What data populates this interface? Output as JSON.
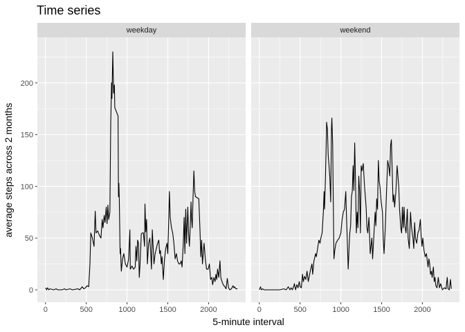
{
  "chart_data": {
    "type": "line",
    "title": "Time series",
    "xlabel": "5-minute interval",
    "ylabel": "average steps across 2 months",
    "xlim": [
      -100,
      2455
    ],
    "ylim": [
      -12,
      244
    ],
    "x_ticks": [
      0,
      500,
      1000,
      1500,
      2000
    ],
    "y_ticks": [
      0,
      50,
      100,
      150,
      200
    ],
    "grid": true,
    "facets": [
      {
        "label": "weekday",
        "points": [
          [
            0,
            2
          ],
          [
            15,
            0
          ],
          [
            25,
            2
          ],
          [
            40,
            0
          ],
          [
            55,
            1
          ],
          [
            100,
            0
          ],
          [
            130,
            1
          ],
          [
            150,
            0
          ],
          [
            200,
            0
          ],
          [
            235,
            1
          ],
          [
            250,
            0
          ],
          [
            300,
            1
          ],
          [
            330,
            0
          ],
          [
            400,
            1
          ],
          [
            420,
            0
          ],
          [
            450,
            3
          ],
          [
            470,
            1
          ],
          [
            490,
            2
          ],
          [
            510,
            4
          ],
          [
            530,
            3
          ],
          [
            545,
            25
          ],
          [
            555,
            55
          ],
          [
            575,
            50
          ],
          [
            595,
            42
          ],
          [
            610,
            76
          ],
          [
            620,
            55
          ],
          [
            640,
            57
          ],
          [
            660,
            53
          ],
          [
            680,
            50
          ],
          [
            695,
            68
          ],
          [
            705,
            60
          ],
          [
            720,
            72
          ],
          [
            730,
            65
          ],
          [
            745,
            80
          ],
          [
            755,
            64
          ],
          [
            765,
            82
          ],
          [
            775,
            68
          ],
          [
            790,
            75
          ],
          [
            800,
            160
          ],
          [
            810,
            200
          ],
          [
            815,
            185
          ],
          [
            825,
            230
          ],
          [
            835,
            190
          ],
          [
            845,
            198
          ],
          [
            850,
            176
          ],
          [
            870,
            172
          ],
          [
            890,
            168
          ],
          [
            895,
            90
          ],
          [
            900,
            103
          ],
          [
            905,
            88
          ],
          [
            915,
            35
          ],
          [
            920,
            40
          ],
          [
            930,
            18
          ],
          [
            945,
            30
          ],
          [
            960,
            35
          ],
          [
            980,
            25
          ],
          [
            1000,
            22
          ],
          [
            1020,
            30
          ],
          [
            1035,
            58
          ],
          [
            1040,
            20
          ],
          [
            1060,
            23
          ],
          [
            1080,
            20
          ],
          [
            1100,
            22
          ],
          [
            1110,
            42
          ],
          [
            1120,
            28
          ],
          [
            1130,
            48
          ],
          [
            1140,
            45
          ],
          [
            1150,
            12
          ],
          [
            1160,
            25
          ],
          [
            1175,
            54
          ],
          [
            1185,
            55
          ],
          [
            1200,
            55
          ],
          [
            1215,
            42
          ],
          [
            1220,
            83
          ],
          [
            1230,
            56
          ],
          [
            1240,
            68
          ],
          [
            1250,
            25
          ],
          [
            1265,
            45
          ],
          [
            1280,
            50
          ],
          [
            1290,
            35
          ],
          [
            1300,
            20
          ],
          [
            1310,
            58
          ],
          [
            1320,
            42
          ],
          [
            1330,
            25
          ],
          [
            1345,
            35
          ],
          [
            1360,
            40
          ],
          [
            1375,
            45
          ],
          [
            1390,
            48
          ],
          [
            1400,
            35
          ],
          [
            1410,
            38
          ],
          [
            1420,
            25
          ],
          [
            1430,
            32
          ],
          [
            1445,
            10
          ],
          [
            1460,
            30
          ],
          [
            1475,
            40
          ],
          [
            1490,
            45
          ],
          [
            1500,
            35
          ],
          [
            1510,
            64
          ],
          [
            1520,
            95
          ],
          [
            1530,
            70
          ],
          [
            1545,
            60
          ],
          [
            1560,
            55
          ],
          [
            1575,
            45
          ],
          [
            1590,
            30
          ],
          [
            1605,
            35
          ],
          [
            1620,
            28
          ],
          [
            1635,
            25
          ],
          [
            1650,
            25
          ],
          [
            1665,
            28
          ],
          [
            1675,
            22
          ],
          [
            1690,
            45
          ],
          [
            1700,
            70
          ],
          [
            1710,
            35
          ],
          [
            1720,
            78
          ],
          [
            1730,
            45
          ],
          [
            1745,
            80
          ],
          [
            1755,
            55
          ],
          [
            1765,
            42
          ],
          [
            1775,
            60
          ],
          [
            1785,
            85
          ],
          [
            1790,
            70
          ],
          [
            1800,
            60
          ],
          [
            1810,
            90
          ],
          [
            1820,
            115
          ],
          [
            1830,
            95
          ],
          [
            1840,
            90
          ],
          [
            1880,
            88
          ],
          [
            1895,
            58
          ],
          [
            1905,
            32
          ],
          [
            1915,
            48
          ],
          [
            1925,
            25
          ],
          [
            1935,
            35
          ],
          [
            1945,
            45
          ],
          [
            1960,
            30
          ],
          [
            1975,
            20
          ],
          [
            1995,
            20
          ],
          [
            2010,
            25
          ],
          [
            2025,
            10
          ],
          [
            2040,
            12
          ],
          [
            2050,
            5
          ],
          [
            2065,
            12
          ],
          [
            2080,
            8
          ],
          [
            2090,
            15
          ],
          [
            2100,
            10
          ],
          [
            2110,
            20
          ],
          [
            2125,
            12
          ],
          [
            2140,
            28
          ],
          [
            2150,
            12
          ],
          [
            2165,
            8
          ],
          [
            2180,
            5
          ],
          [
            2200,
            3
          ],
          [
            2215,
            1
          ],
          [
            2230,
            11
          ],
          [
            2245,
            2
          ],
          [
            2260,
            0
          ],
          [
            2280,
            1
          ],
          [
            2300,
            4
          ],
          [
            2310,
            2
          ],
          [
            2320,
            3
          ],
          [
            2335,
            1
          ],
          [
            2355,
            1
          ]
        ]
      },
      {
        "label": "weekend",
        "points": [
          [
            0,
            0
          ],
          [
            15,
            3
          ],
          [
            25,
            0
          ],
          [
            40,
            1
          ],
          [
            60,
            0
          ],
          [
            100,
            0
          ],
          [
            150,
            0
          ],
          [
            200,
            0
          ],
          [
            250,
            0
          ],
          [
            300,
            1
          ],
          [
            330,
            0
          ],
          [
            355,
            3
          ],
          [
            375,
            0
          ],
          [
            390,
            2
          ],
          [
            405,
            0
          ],
          [
            420,
            3
          ],
          [
            430,
            6
          ],
          [
            445,
            0
          ],
          [
            460,
            5
          ],
          [
            475,
            2
          ],
          [
            490,
            8
          ],
          [
            500,
            3
          ],
          [
            515,
            2
          ],
          [
            530,
            15
          ],
          [
            540,
            8
          ],
          [
            555,
            13
          ],
          [
            570,
            10
          ],
          [
            585,
            18
          ],
          [
            600,
            8
          ],
          [
            615,
            14
          ],
          [
            630,
            20
          ],
          [
            645,
            25
          ],
          [
            655,
            15
          ],
          [
            670,
            28
          ],
          [
            690,
            35
          ],
          [
            700,
            32
          ],
          [
            715,
            40
          ],
          [
            730,
            48
          ],
          [
            745,
            45
          ],
          [
            755,
            50
          ],
          [
            770,
            55
          ],
          [
            785,
            75
          ],
          [
            795,
            95
          ],
          [
            800,
            78
          ],
          [
            810,
            105
          ],
          [
            820,
            140
          ],
          [
            825,
            162
          ],
          [
            835,
            155
          ],
          [
            845,
            130
          ],
          [
            855,
            120
          ],
          [
            865,
            108
          ],
          [
            875,
            85
          ],
          [
            885,
            155
          ],
          [
            890,
            166
          ],
          [
            900,
            140
          ],
          [
            905,
            100
          ],
          [
            915,
            30
          ],
          [
            925,
            38
          ],
          [
            940,
            45
          ],
          [
            960,
            48
          ],
          [
            980,
            50
          ],
          [
            1000,
            55
          ],
          [
            1015,
            68
          ],
          [
            1030,
            75
          ],
          [
            1045,
            78
          ],
          [
            1060,
            95
          ],
          [
            1070,
            70
          ],
          [
            1080,
            45
          ],
          [
            1090,
            20
          ],
          [
            1100,
            40
          ],
          [
            1110,
            55
          ],
          [
            1120,
            62
          ],
          [
            1130,
            90
          ],
          [
            1140,
            95
          ],
          [
            1150,
            120
          ],
          [
            1160,
            96
          ],
          [
            1170,
            142
          ],
          [
            1180,
            105
          ],
          [
            1190,
            55
          ],
          [
            1200,
            75
          ],
          [
            1210,
            60
          ],
          [
            1220,
            110
          ],
          [
            1230,
            95
          ],
          [
            1240,
            55
          ],
          [
            1250,
            120
          ],
          [
            1260,
            115
          ],
          [
            1275,
            122
          ],
          [
            1290,
            100
          ],
          [
            1310,
            80
          ],
          [
            1320,
            60
          ],
          [
            1330,
            55
          ],
          [
            1345,
            70
          ],
          [
            1360,
            35
          ],
          [
            1380,
            50
          ],
          [
            1390,
            30
          ],
          [
            1400,
            45
          ],
          [
            1420,
            75
          ],
          [
            1430,
            62
          ],
          [
            1440,
            88
          ],
          [
            1450,
            78
          ],
          [
            1460,
            125
          ],
          [
            1470,
            105
          ],
          [
            1480,
            100
          ],
          [
            1495,
            85
          ],
          [
            1510,
            75
          ],
          [
            1520,
            50
          ],
          [
            1530,
            35
          ],
          [
            1545,
            60
          ],
          [
            1560,
            95
          ],
          [
            1575,
            125
          ],
          [
            1590,
            118
          ],
          [
            1600,
            110
          ],
          [
            1610,
            140
          ],
          [
            1620,
            145
          ],
          [
            1630,
            115
          ],
          [
            1640,
            85
          ],
          [
            1650,
            92
          ],
          [
            1660,
            80
          ],
          [
            1675,
            95
          ],
          [
            1690,
            120
          ],
          [
            1700,
            110
          ],
          [
            1710,
            100
          ],
          [
            1720,
            78
          ],
          [
            1735,
            60
          ],
          [
            1745,
            55
          ],
          [
            1755,
            80
          ],
          [
            1765,
            60
          ],
          [
            1775,
            80
          ],
          [
            1785,
            62
          ],
          [
            1800,
            55
          ],
          [
            1815,
            78
          ],
          [
            1825,
            50
          ],
          [
            1840,
            40
          ],
          [
            1855,
            75
          ],
          [
            1865,
            62
          ],
          [
            1875,
            55
          ],
          [
            1885,
            50
          ],
          [
            1895,
            40
          ],
          [
            1905,
            65
          ],
          [
            1915,
            50
          ],
          [
            1930,
            45
          ],
          [
            1945,
            55
          ],
          [
            1960,
            58
          ],
          [
            1975,
            68
          ],
          [
            1985,
            52
          ],
          [
            1995,
            42
          ],
          [
            2005,
            50
          ],
          [
            2020,
            38
          ],
          [
            2035,
            32
          ],
          [
            2050,
            35
          ],
          [
            2060,
            28
          ],
          [
            2070,
            22
          ],
          [
            2080,
            30
          ],
          [
            2090,
            25
          ],
          [
            2100,
            15
          ],
          [
            2110,
            18
          ],
          [
            2120,
            12
          ],
          [
            2135,
            22
          ],
          [
            2145,
            8
          ],
          [
            2155,
            12
          ],
          [
            2165,
            4
          ],
          [
            2180,
            2
          ],
          [
            2195,
            12
          ],
          [
            2210,
            2
          ],
          [
            2225,
            6
          ],
          [
            2245,
            0
          ],
          [
            2270,
            2
          ],
          [
            2290,
            1
          ],
          [
            2305,
            12
          ],
          [
            2315,
            1
          ],
          [
            2330,
            0
          ],
          [
            2345,
            10
          ],
          [
            2355,
            1
          ]
        ]
      }
    ]
  },
  "colors": {
    "panel_background": "#ebebeb",
    "strip_background": "#d9d9d9",
    "grid_line": "#ffffff",
    "series_line": "#000000"
  }
}
